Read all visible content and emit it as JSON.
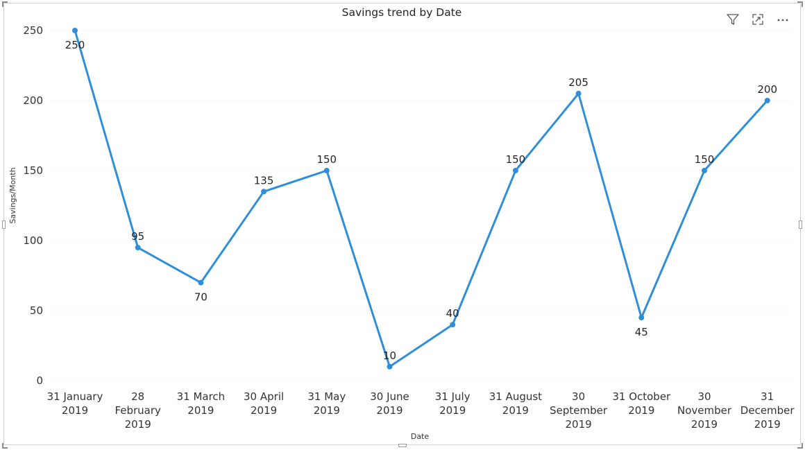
{
  "visual_header": {
    "icons": [
      "filter-icon",
      "focus-mode-icon",
      "more-options-icon"
    ]
  },
  "chart_data": {
    "type": "line",
    "title": "Savings trend by Date",
    "xlabel": "Date",
    "ylabel": "Savings/Month",
    "categories": [
      [
        "31 January",
        "2019"
      ],
      [
        "28",
        "February",
        "2019"
      ],
      [
        "31 March",
        "2019"
      ],
      [
        "30 April",
        "2019"
      ],
      [
        "31 May",
        "2019"
      ],
      [
        "30 June",
        "2019"
      ],
      [
        "31 July",
        "2019"
      ],
      [
        "31 August",
        "2019"
      ],
      [
        "30",
        "September",
        "2019"
      ],
      [
        "31 October",
        "2019"
      ],
      [
        "30",
        "November",
        "2019"
      ],
      [
        "31",
        "December",
        "2019"
      ]
    ],
    "values": [
      250,
      95,
      70,
      135,
      150,
      10,
      40,
      150,
      205,
      45,
      150,
      200
    ],
    "label_position": [
      "below",
      "above",
      "below",
      "above",
      "above",
      "above",
      "above",
      "above",
      "above",
      "below",
      "above",
      "above"
    ],
    "y_ticks": [
      0,
      50,
      100,
      150,
      200,
      250
    ],
    "ylim": [
      0,
      250
    ],
    "grid": true,
    "line_color": "#2f8ed8",
    "text_color": "#252423",
    "axis_text_color": "#333333",
    "gridline_color": "#e6e6e6"
  }
}
